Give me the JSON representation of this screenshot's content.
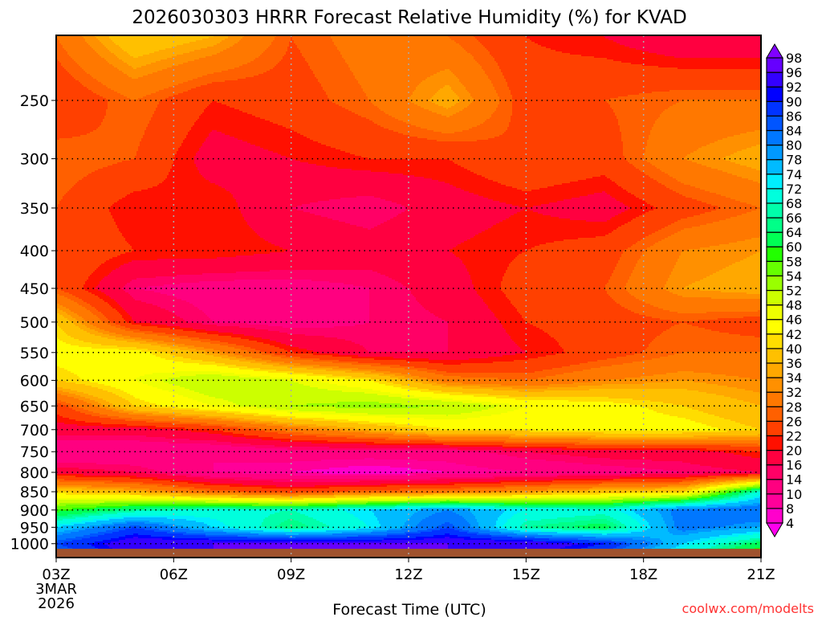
{
  "chart_data": {
    "type": "heatmap",
    "title": "2026030303 HRRR Forecast Relative Humidity (%) for KVAD",
    "xlabel": "Forecast Time (UTC)",
    "ylabel": "",
    "credit": "coolwx.com/modelts",
    "x_ticks": [
      {
        "hour": 0,
        "label": "03Z",
        "sub": [
          "3MAR",
          "2026"
        ]
      },
      {
        "hour": 3,
        "label": "06Z"
      },
      {
        "hour": 6,
        "label": "09Z"
      },
      {
        "hour": 9,
        "label": "12Z"
      },
      {
        "hour": 12,
        "label": "15Z"
      },
      {
        "hour": 15,
        "label": "18Z"
      },
      {
        "hour": 18,
        "label": "21Z"
      }
    ],
    "y_ticks": [
      250,
      300,
      350,
      400,
      450,
      500,
      550,
      600,
      650,
      700,
      750,
      800,
      850,
      900,
      950,
      1000
    ],
    "xlim": [
      0,
      18
    ],
    "ylim_hpa": [
      205,
      1043
    ],
    "y_scale": "log",
    "ground_top_hpa": 1016,
    "ground_color": "#a0522d",
    "grid_hours": [
      0,
      2,
      4,
      6,
      8,
      10,
      12,
      14,
      16,
      18
    ],
    "grid_levels_hpa": [
      205,
      250,
      300,
      350,
      400,
      450,
      500,
      550,
      600,
      650,
      700,
      750,
      800,
      850,
      900,
      950,
      1000,
      1043
    ],
    "values": [
      [
        28,
        40,
        36,
        26,
        30,
        28,
        22,
        20,
        16,
        16
      ],
      [
        22,
        28,
        22,
        24,
        28,
        36,
        24,
        26,
        28,
        28
      ],
      [
        28,
        26,
        18,
        20,
        22,
        22,
        26,
        24,
        32,
        36
      ],
      [
        26,
        20,
        22,
        16,
        14,
        18,
        20,
        18,
        24,
        28
      ],
      [
        26,
        22,
        22,
        20,
        18,
        20,
        22,
        24,
        32,
        34
      ],
      [
        26,
        14,
        12,
        12,
        14,
        18,
        24,
        26,
        34,
        36
      ],
      [
        40,
        20,
        14,
        12,
        14,
        16,
        22,
        24,
        26,
        24
      ],
      [
        44,
        44,
        34,
        22,
        16,
        16,
        20,
        24,
        28,
        28
      ],
      [
        40,
        46,
        52,
        48,
        42,
        30,
        28,
        32,
        34,
        32
      ],
      [
        24,
        40,
        46,
        52,
        54,
        52,
        46,
        44,
        40,
        36
      ],
      [
        18,
        18,
        22,
        30,
        36,
        42,
        42,
        44,
        44,
        40
      ],
      [
        10,
        10,
        10,
        12,
        12,
        12,
        16,
        18,
        18,
        22
      ],
      [
        18,
        16,
        10,
        8,
        6,
        8,
        10,
        12,
        14,
        16
      ],
      [
        40,
        36,
        28,
        24,
        28,
        30,
        34,
        38,
        40,
        70
      ],
      [
        58,
        66,
        70,
        68,
        74,
        80,
        72,
        70,
        82,
        84
      ],
      [
        74,
        86,
        74,
        64,
        72,
        86,
        66,
        62,
        82,
        78
      ],
      [
        86,
        96,
        96,
        96,
        96,
        96,
        96,
        90,
        74,
        62
      ],
      [
        80,
        94,
        96,
        96,
        96,
        96,
        94,
        84,
        68,
        54
      ]
    ],
    "colorbar": {
      "labels": [
        4,
        8,
        10,
        14,
        16,
        20,
        22,
        26,
        28,
        32,
        34,
        36,
        40,
        42,
        46,
        48,
        52,
        54,
        58,
        60,
        64,
        66,
        68,
        72,
        74,
        78,
        80,
        84,
        86,
        90,
        92,
        96,
        98
      ],
      "colors": [
        "#ff00cc",
        "#ff0099",
        "#ff0080",
        "#ff0066",
        "#ff0040",
        "#ff1000",
        "#ff4000",
        "#ff6000",
        "#ff7800",
        "#ff9000",
        "#ffa800",
        "#ffc000",
        "#ffdd00",
        "#ffff00",
        "#eeff00",
        "#ccff00",
        "#99ff00",
        "#66ff00",
        "#22ff00",
        "#00ff55",
        "#00ff88",
        "#00ffaa",
        "#00ffdd",
        "#00eeff",
        "#00bbff",
        "#0099ff",
        "#0077ff",
        "#0055ff",
        "#0033ff",
        "#0000ff",
        "#3300ff",
        "#6600ff"
      ],
      "below_color": "#ff00ee",
      "above_color": "#8000ff"
    },
    "credit_color": "#ff3333"
  }
}
